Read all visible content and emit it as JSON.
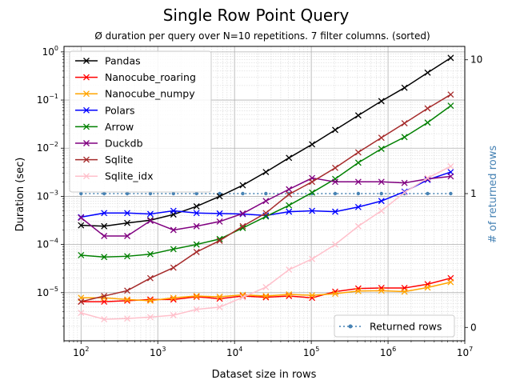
{
  "chart_data": {
    "type": "line",
    "title": "Single Row Point Query",
    "subtitle": "Ø duration per query over N=10 repetitions. 7 filter columns. (sorted)",
    "xlabel": "Dataset size in rows",
    "ylabel": "Duration (sec)",
    "y2label": "# of returned rows",
    "xscale": "log",
    "yscale": "log",
    "xlim": [
      60,
      10000000
    ],
    "ylim": [
      1e-06,
      1.3
    ],
    "y2lim": [
      -0.05,
      1.05
    ],
    "grid": true,
    "legend_placement": "upper-left",
    "x_ticks": [
      {
        "v": 100,
        "l": "10",
        "e": "2"
      },
      {
        "v": 1000,
        "l": "10",
        "e": "3"
      },
      {
        "v": 10000,
        "l": "10",
        "e": "4"
      },
      {
        "v": 100000,
        "l": "10",
        "e": "5"
      },
      {
        "v": 1000000,
        "l": "10",
        "e": "6"
      },
      {
        "v": 10000000,
        "l": "10",
        "e": "7"
      }
    ],
    "y_ticks": [
      {
        "v": 1e-05,
        "l": "10",
        "e": "−5"
      },
      {
        "v": 0.0001,
        "l": "10",
        "e": "−4"
      },
      {
        "v": 0.001,
        "l": "10",
        "e": "−3"
      },
      {
        "v": 0.01,
        "l": "10",
        "e": "−2"
      },
      {
        "v": 0.1,
        "l": "10",
        "e": "−1"
      },
      {
        "v": 1,
        "l": "10",
        "e": "0"
      }
    ],
    "y2_ticks": [
      {
        "v": 0,
        "l": "0"
      },
      {
        "v": 0.5,
        "l": "1"
      },
      {
        "v": 1,
        "l": "10"
      }
    ],
    "x": [
      100,
      200,
      400,
      800,
      1600,
      3200,
      6400,
      12800,
      25600,
      51200,
      102400,
      204800,
      409600,
      819200,
      1638400,
      3276800,
      6553600
    ],
    "series": [
      {
        "name": "Pandas",
        "color": "#000000",
        "values": [
          0.00025,
          0.00024,
          0.00028,
          0.00032,
          0.00042,
          0.00062,
          0.001,
          0.0017,
          0.0032,
          0.0063,
          0.012,
          0.024,
          0.048,
          0.095,
          0.18,
          0.37,
          0.75
        ]
      },
      {
        "name": "Nanocube_roaring",
        "color": "#ff0000",
        "values": [
          6.5e-06,
          6.5e-06,
          6.8e-06,
          7.2e-06,
          7.2e-06,
          8.2e-06,
          7.5e-06,
          8.5e-06,
          8e-06,
          8.5e-06,
          7.8e-06,
          1.05e-05,
          1.22e-05,
          1.25e-05,
          1.25e-05,
          1.5e-05,
          2e-05
        ]
      },
      {
        "name": "Nanocube_numpy",
        "color": "#ffa500",
        "values": [
          7.8e-06,
          7.8e-06,
          7.2e-06,
          6.8e-06,
          7.8e-06,
          8.5e-06,
          8.2e-06,
          9e-06,
          8.5e-06,
          9.2e-06,
          8.8e-06,
          9.5e-06,
          1.08e-05,
          1.1e-05,
          1.05e-05,
          1.28e-05,
          1.65e-05
        ]
      },
      {
        "name": "Polars",
        "color": "#0000ff",
        "values": [
          0.00037,
          0.00045,
          0.00045,
          0.00043,
          0.0005,
          0.00045,
          0.00044,
          0.00043,
          0.0004,
          0.00048,
          0.0005,
          0.00048,
          0.0006,
          0.0008,
          0.00125,
          0.0022,
          0.0032
        ]
      },
      {
        "name": "Arrow",
        "color": "#008000",
        "values": [
          6e-05,
          5.5e-05,
          5.7e-05,
          6.3e-05,
          8e-05,
          0.0001,
          0.00013,
          0.00022,
          0.00038,
          0.00065,
          0.0012,
          0.0023,
          0.005,
          0.0097,
          0.017,
          0.034,
          0.076
        ]
      },
      {
        "name": "Duckdb",
        "color": "#800080",
        "values": [
          0.00036,
          0.00015,
          0.00015,
          0.00031,
          0.0002,
          0.00024,
          0.0003,
          0.00044,
          0.0008,
          0.0014,
          0.0024,
          0.002,
          0.002,
          0.002,
          0.0019,
          0.0023,
          0.0026
        ]
      },
      {
        "name": "Sqlite",
        "color": "#a52a2a",
        "values": [
          6.5e-06,
          8.5e-06,
          1.1e-05,
          2e-05,
          3.3e-05,
          7e-05,
          0.00012,
          0.00024,
          0.00045,
          0.0011,
          0.002,
          0.0039,
          0.0082,
          0.0165,
          0.033,
          0.067,
          0.13
        ]
      },
      {
        "name": "Sqlite_idx",
        "color": "#ffc0cb",
        "values": [
          3.8e-06,
          2.8e-06,
          2.9e-06,
          3.1e-06,
          3.4e-06,
          4.5e-06,
          5e-06,
          8e-06,
          1.3e-05,
          3e-05,
          5e-05,
          0.0001,
          0.00024,
          0.0005,
          0.0012,
          0.0024,
          0.0042
        ]
      }
    ],
    "secondary_series": {
      "name": "Returned rows",
      "color": "#4682b4",
      "style": "dotted",
      "values": [
        0.5,
        0.5,
        0.5,
        0.5,
        0.5,
        0.5,
        0.5,
        0.5,
        0.5,
        0.5,
        0.5,
        0.5,
        0.5,
        0.5,
        0.5,
        0.5,
        0.5
      ]
    }
  }
}
